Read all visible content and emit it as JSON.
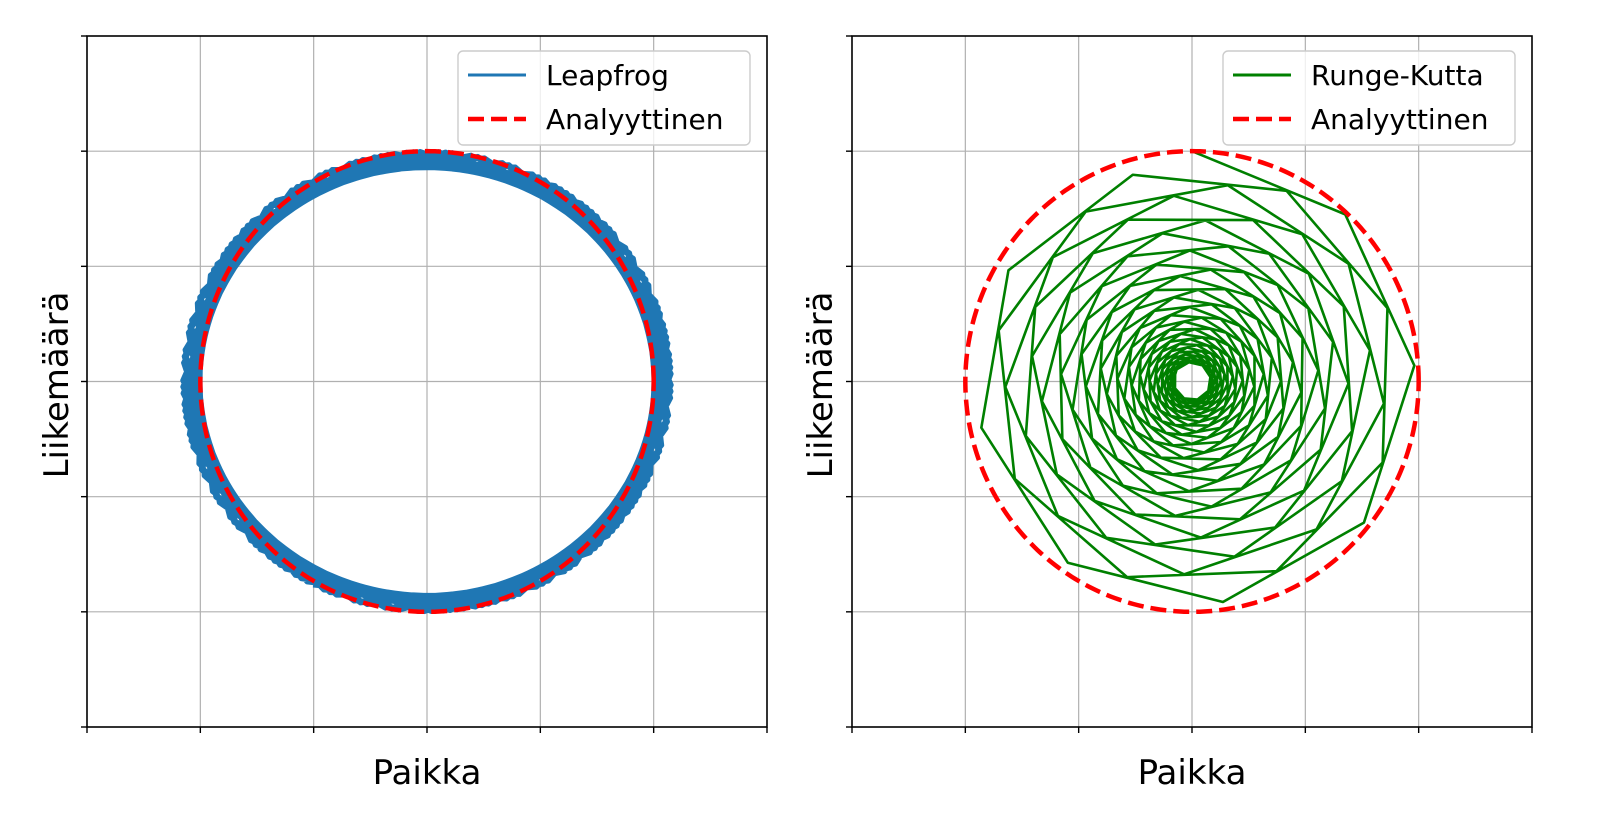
{
  "chart_data": [
    {
      "type": "line",
      "title": "",
      "xlabel": "Paikka",
      "ylabel": "Liikemäärä",
      "xlim": [
        -1.5,
        1.5
      ],
      "ylim": [
        -1.5,
        1.5
      ],
      "x_ticks": [
        -1.5,
        -1.0,
        -0.5,
        0.0,
        0.5,
        1.0,
        1.5
      ],
      "y_ticks": [
        -1.5,
        -1.0,
        -0.5,
        0.0,
        0.5,
        1.0,
        1.5
      ],
      "tick_labels_shown": false,
      "grid": true,
      "legend_position": "top-right",
      "series": [
        {
          "name": "Leapfrog",
          "color": "#1f77b4",
          "style": "solid",
          "kind": "leapfrog_orbit",
          "step": 0.75,
          "steps": 160,
          "x0": 0.0,
          "p0": 1.0
        },
        {
          "name": "Analyyttinen",
          "color": "#ff0000",
          "style": "dashed",
          "kind": "circle",
          "radius": 1.0,
          "center": [
            0.0,
            0.0
          ]
        }
      ]
    },
    {
      "type": "line",
      "title": "",
      "xlabel": "Paikka",
      "ylabel": "Liikemäärä",
      "xlim": [
        -1.5,
        1.5
      ],
      "ylim": [
        -1.5,
        1.5
      ],
      "x_ticks": [
        -1.5,
        -1.0,
        -0.5,
        0.0,
        0.5,
        1.0,
        1.5
      ],
      "y_ticks": [
        -1.5,
        -1.0,
        -0.5,
        0.0,
        0.5,
        1.0,
        1.5
      ],
      "tick_labels_shown": false,
      "grid": true,
      "legend_position": "top-right",
      "series": [
        {
          "name": "Runge-Kutta",
          "color": "#008000",
          "style": "solid",
          "kind": "decaying_orbit",
          "r_start": 1.0,
          "r_end": 0.08,
          "step_angle": 0.75,
          "steps": 300
        },
        {
          "name": "Analyyttinen",
          "color": "#ff0000",
          "style": "dashed",
          "kind": "circle",
          "radius": 1.0,
          "center": [
            0.0,
            0.0
          ]
        }
      ]
    }
  ]
}
